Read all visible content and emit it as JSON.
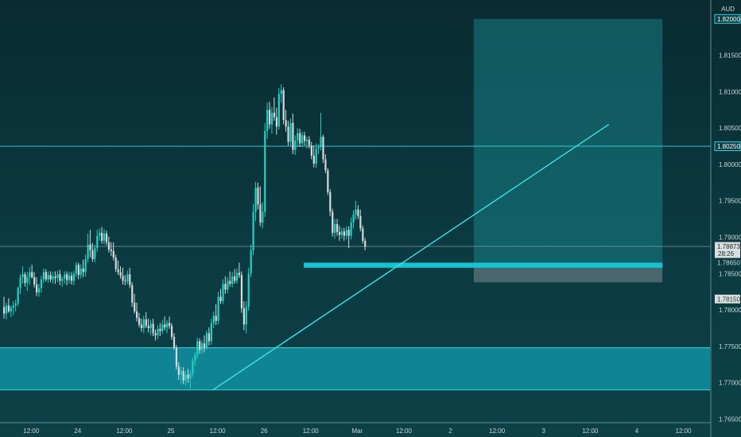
{
  "chart_data": {
    "type": "candlestick",
    "currency": "AUD",
    "ylim": [
      1.7645,
      1.8226
    ],
    "y_ticks": [
      "1.81500",
      "1.81000",
      "1.80500",
      "1.80000",
      "1.79500",
      "1.79000",
      "1.78500",
      "1.78000",
      "1.77500",
      "1.77000",
      "1.76500"
    ],
    "y_tick_values": [
      1.815,
      1.81,
      1.805,
      1.8,
      1.795,
      1.79,
      1.785,
      1.78,
      1.775,
      1.77,
      1.765
    ],
    "x_ticks": [
      "12:00",
      "24",
      "12:00",
      "25",
      "12:00",
      "26",
      "12:00",
      "Mar",
      "12:00",
      "2",
      "12:00",
      "3",
      "12:00",
      "4",
      "12:00"
    ],
    "x_tick_bars": [
      12,
      32,
      52,
      72,
      92,
      112,
      132,
      152,
      172,
      192,
      212,
      232,
      252,
      272,
      292
    ],
    "price_labels": [
      {
        "text": "1.82000",
        "value": 1.82,
        "style": "highlight"
      },
      {
        "text": "1.80250",
        "value": 1.8025,
        "style": "highlight"
      },
      {
        "text": "1.78650",
        "value": 1.7865,
        "style": "plain"
      },
      {
        "text": "1.78150",
        "value": 1.7815,
        "style": "grey"
      }
    ],
    "current_price": {
      "value": 1.78873,
      "text": "1.78873",
      "countdown": "28:26"
    },
    "horizontal_lines": [
      1.8025,
      1.78873
    ],
    "demand_zone": {
      "from": 1.769,
      "to": 1.7748
    },
    "support_band": {
      "from": 1.7858,
      "to": 1.7865,
      "bar_start": 129,
      "bar_end": 283
    },
    "trendline": {
      "bar_start": 90,
      "price_start": 1.769,
      "bar_end": 260,
      "price_end": 1.8055
    },
    "long_position": {
      "bar_start": 202,
      "bar_end": 283,
      "entry": 1.7865,
      "target": 1.82,
      "stop": 1.7838
    },
    "candles": [
      {
        "o": 1.7804,
        "h": 1.7818,
        "l": 1.7788,
        "c": 1.7795
      },
      {
        "o": 1.7795,
        "h": 1.781,
        "l": 1.7787,
        "c": 1.7806
      },
      {
        "o": 1.7806,
        "h": 1.7816,
        "l": 1.7796,
        "c": 1.7798
      },
      {
        "o": 1.7798,
        "h": 1.7806,
        "l": 1.779,
        "c": 1.7803
      },
      {
        "o": 1.7803,
        "h": 1.7812,
        "l": 1.7793,
        "c": 1.7806
      },
      {
        "o": 1.7806,
        "h": 1.7814,
        "l": 1.7798,
        "c": 1.7809
      },
      {
        "o": 1.7809,
        "h": 1.7832,
        "l": 1.7805,
        "c": 1.783
      },
      {
        "o": 1.783,
        "h": 1.7849,
        "l": 1.7822,
        "c": 1.7845
      },
      {
        "o": 1.7845,
        "h": 1.786,
        "l": 1.7836,
        "c": 1.7849
      },
      {
        "o": 1.7849,
        "h": 1.7852,
        "l": 1.7832,
        "c": 1.7837
      },
      {
        "o": 1.7837,
        "h": 1.7852,
        "l": 1.7826,
        "c": 1.7845
      },
      {
        "o": 1.7845,
        "h": 1.7859,
        "l": 1.7834,
        "c": 1.7852
      },
      {
        "o": 1.7852,
        "h": 1.7862,
        "l": 1.7843,
        "c": 1.7845
      },
      {
        "o": 1.7845,
        "h": 1.7852,
        "l": 1.7831,
        "c": 1.7835
      },
      {
        "o": 1.7835,
        "h": 1.7845,
        "l": 1.7819,
        "c": 1.7824
      },
      {
        "o": 1.7824,
        "h": 1.7836,
        "l": 1.7818,
        "c": 1.783
      },
      {
        "o": 1.783,
        "h": 1.7847,
        "l": 1.7824,
        "c": 1.7842
      },
      {
        "o": 1.7842,
        "h": 1.7857,
        "l": 1.7837,
        "c": 1.7852
      },
      {
        "o": 1.7852,
        "h": 1.7856,
        "l": 1.7839,
        "c": 1.7842
      },
      {
        "o": 1.7842,
        "h": 1.7853,
        "l": 1.7837,
        "c": 1.7848
      },
      {
        "o": 1.7848,
        "h": 1.7853,
        "l": 1.7838,
        "c": 1.7842
      },
      {
        "o": 1.7842,
        "h": 1.7852,
        "l": 1.7836,
        "c": 1.7846
      },
      {
        "o": 1.7846,
        "h": 1.7853,
        "l": 1.7836,
        "c": 1.7844
      },
      {
        "o": 1.7844,
        "h": 1.7854,
        "l": 1.7838,
        "c": 1.7849
      },
      {
        "o": 1.7849,
        "h": 1.7855,
        "l": 1.7834,
        "c": 1.784
      },
      {
        "o": 1.784,
        "h": 1.7846,
        "l": 1.7832,
        "c": 1.7843
      },
      {
        "o": 1.7843,
        "h": 1.7853,
        "l": 1.7836,
        "c": 1.7849
      },
      {
        "o": 1.7849,
        "h": 1.7853,
        "l": 1.7834,
        "c": 1.7841
      },
      {
        "o": 1.7841,
        "h": 1.7852,
        "l": 1.7836,
        "c": 1.7847
      },
      {
        "o": 1.7847,
        "h": 1.7852,
        "l": 1.7835,
        "c": 1.784
      },
      {
        "o": 1.784,
        "h": 1.7854,
        "l": 1.7834,
        "c": 1.785
      },
      {
        "o": 1.785,
        "h": 1.7866,
        "l": 1.7845,
        "c": 1.7862
      },
      {
        "o": 1.7862,
        "h": 1.7865,
        "l": 1.7842,
        "c": 1.7848
      },
      {
        "o": 1.7848,
        "h": 1.7863,
        "l": 1.7843,
        "c": 1.7857
      },
      {
        "o": 1.7857,
        "h": 1.7869,
        "l": 1.7845,
        "c": 1.7852
      },
      {
        "o": 1.7852,
        "h": 1.7876,
        "l": 1.7846,
        "c": 1.787
      },
      {
        "o": 1.787,
        "h": 1.7905,
        "l": 1.7865,
        "c": 1.789
      },
      {
        "o": 1.789,
        "h": 1.791,
        "l": 1.7872,
        "c": 1.7882
      },
      {
        "o": 1.7882,
        "h": 1.7892,
        "l": 1.7866,
        "c": 1.787
      },
      {
        "o": 1.787,
        "h": 1.789,
        "l": 1.7865,
        "c": 1.7885
      },
      {
        "o": 1.7885,
        "h": 1.791,
        "l": 1.788,
        "c": 1.7902
      },
      {
        "o": 1.7902,
        "h": 1.7912,
        "l": 1.7895,
        "c": 1.7906
      },
      {
        "o": 1.7906,
        "h": 1.7914,
        "l": 1.7891,
        "c": 1.7895
      },
      {
        "o": 1.7895,
        "h": 1.7911,
        "l": 1.789,
        "c": 1.7905
      },
      {
        "o": 1.7905,
        "h": 1.7909,
        "l": 1.7889,
        "c": 1.7893
      },
      {
        "o": 1.7893,
        "h": 1.7901,
        "l": 1.7879,
        "c": 1.7883
      },
      {
        "o": 1.7883,
        "h": 1.7893,
        "l": 1.7874,
        "c": 1.7881
      },
      {
        "o": 1.7881,
        "h": 1.7893,
        "l": 1.7868,
        "c": 1.7872
      },
      {
        "o": 1.7872,
        "h": 1.7876,
        "l": 1.7852,
        "c": 1.7856
      },
      {
        "o": 1.7856,
        "h": 1.7868,
        "l": 1.7848,
        "c": 1.7852
      },
      {
        "o": 1.7852,
        "h": 1.786,
        "l": 1.7843,
        "c": 1.7847
      },
      {
        "o": 1.7847,
        "h": 1.7858,
        "l": 1.7835,
        "c": 1.784
      },
      {
        "o": 1.784,
        "h": 1.7848,
        "l": 1.7834,
        "c": 1.7839
      },
      {
        "o": 1.7839,
        "h": 1.7854,
        "l": 1.7835,
        "c": 1.7849
      },
      {
        "o": 1.7849,
        "h": 1.7858,
        "l": 1.783,
        "c": 1.7834
      },
      {
        "o": 1.7834,
        "h": 1.7838,
        "l": 1.7804,
        "c": 1.781
      },
      {
        "o": 1.781,
        "h": 1.7822,
        "l": 1.7795,
        "c": 1.7798
      },
      {
        "o": 1.7798,
        "h": 1.781,
        "l": 1.7784,
        "c": 1.7789
      },
      {
        "o": 1.7789,
        "h": 1.7796,
        "l": 1.7776,
        "c": 1.778
      },
      {
        "o": 1.778,
        "h": 1.7788,
        "l": 1.777,
        "c": 1.7775
      },
      {
        "o": 1.7775,
        "h": 1.7792,
        "l": 1.7768,
        "c": 1.7787
      },
      {
        "o": 1.7787,
        "h": 1.7797,
        "l": 1.7775,
        "c": 1.7778
      },
      {
        "o": 1.7778,
        "h": 1.7788,
        "l": 1.7769,
        "c": 1.7775
      },
      {
        "o": 1.7775,
        "h": 1.7786,
        "l": 1.7765,
        "c": 1.7781
      },
      {
        "o": 1.7781,
        "h": 1.7788,
        "l": 1.7764,
        "c": 1.7768
      },
      {
        "o": 1.7768,
        "h": 1.7773,
        "l": 1.7758,
        "c": 1.7765
      },
      {
        "o": 1.7765,
        "h": 1.7779,
        "l": 1.776,
        "c": 1.7774
      },
      {
        "o": 1.7774,
        "h": 1.7782,
        "l": 1.7764,
        "c": 1.7771
      },
      {
        "o": 1.7771,
        "h": 1.7786,
        "l": 1.7767,
        "c": 1.778
      },
      {
        "o": 1.778,
        "h": 1.7791,
        "l": 1.7772,
        "c": 1.7776
      },
      {
        "o": 1.7776,
        "h": 1.7786,
        "l": 1.7768,
        "c": 1.7782
      },
      {
        "o": 1.7782,
        "h": 1.7791,
        "l": 1.7774,
        "c": 1.7778
      },
      {
        "o": 1.7778,
        "h": 1.7782,
        "l": 1.7759,
        "c": 1.7763
      },
      {
        "o": 1.7763,
        "h": 1.7768,
        "l": 1.7745,
        "c": 1.7748
      },
      {
        "o": 1.7748,
        "h": 1.7752,
        "l": 1.7718,
        "c": 1.7722
      },
      {
        "o": 1.7722,
        "h": 1.7728,
        "l": 1.7704,
        "c": 1.7711
      },
      {
        "o": 1.7711,
        "h": 1.7722,
        "l": 1.7698,
        "c": 1.7716
      },
      {
        "o": 1.7716,
        "h": 1.7721,
        "l": 1.7698,
        "c": 1.7703
      },
      {
        "o": 1.7703,
        "h": 1.7716,
        "l": 1.7696,
        "c": 1.7711
      },
      {
        "o": 1.7711,
        "h": 1.7719,
        "l": 1.77,
        "c": 1.7706
      },
      {
        "o": 1.7706,
        "h": 1.7717,
        "l": 1.7692,
        "c": 1.7713
      },
      {
        "o": 1.7713,
        "h": 1.7734,
        "l": 1.7708,
        "c": 1.773
      },
      {
        "o": 1.773,
        "h": 1.7742,
        "l": 1.7723,
        "c": 1.7738
      },
      {
        "o": 1.7738,
        "h": 1.7762,
        "l": 1.7733,
        "c": 1.7757
      },
      {
        "o": 1.7757,
        "h": 1.7761,
        "l": 1.774,
        "c": 1.7745
      },
      {
        "o": 1.7745,
        "h": 1.7758,
        "l": 1.774,
        "c": 1.7754
      },
      {
        "o": 1.7754,
        "h": 1.7765,
        "l": 1.7742,
        "c": 1.7748
      },
      {
        "o": 1.7748,
        "h": 1.7772,
        "l": 1.7745,
        "c": 1.7768
      },
      {
        "o": 1.7768,
        "h": 1.7776,
        "l": 1.7751,
        "c": 1.7757
      },
      {
        "o": 1.7757,
        "h": 1.7788,
        "l": 1.7752,
        "c": 1.7782
      },
      {
        "o": 1.7782,
        "h": 1.7798,
        "l": 1.7775,
        "c": 1.7792
      },
      {
        "o": 1.7792,
        "h": 1.7808,
        "l": 1.7779,
        "c": 1.7785
      },
      {
        "o": 1.7785,
        "h": 1.7825,
        "l": 1.778,
        "c": 1.7818
      },
      {
        "o": 1.7818,
        "h": 1.7829,
        "l": 1.7808,
        "c": 1.7812
      },
      {
        "o": 1.7812,
        "h": 1.7842,
        "l": 1.7808,
        "c": 1.7836
      },
      {
        "o": 1.7836,
        "h": 1.7846,
        "l": 1.7822,
        "c": 1.7828
      },
      {
        "o": 1.7828,
        "h": 1.7845,
        "l": 1.7823,
        "c": 1.784
      },
      {
        "o": 1.784,
        "h": 1.7853,
        "l": 1.7832,
        "c": 1.7836
      },
      {
        "o": 1.7836,
        "h": 1.7852,
        "l": 1.7831,
        "c": 1.7846
      },
      {
        "o": 1.7846,
        "h": 1.7856,
        "l": 1.7836,
        "c": 1.784
      },
      {
        "o": 1.784,
        "h": 1.7857,
        "l": 1.7836,
        "c": 1.7851
      },
      {
        "o": 1.7851,
        "h": 1.7865,
        "l": 1.7844,
        "c": 1.7848
      },
      {
        "o": 1.7848,
        "h": 1.7853,
        "l": 1.7796,
        "c": 1.7802
      },
      {
        "o": 1.7802,
        "h": 1.7812,
        "l": 1.7772,
        "c": 1.778
      },
      {
        "o": 1.778,
        "h": 1.7812,
        "l": 1.7768,
        "c": 1.7804
      },
      {
        "o": 1.7804,
        "h": 1.7858,
        "l": 1.7799,
        "c": 1.785
      },
      {
        "o": 1.785,
        "h": 1.789,
        "l": 1.7845,
        "c": 1.7882
      },
      {
        "o": 1.7882,
        "h": 1.7946,
        "l": 1.7875,
        "c": 1.7935
      },
      {
        "o": 1.7935,
        "h": 1.7976,
        "l": 1.7922,
        "c": 1.7968
      },
      {
        "o": 1.7968,
        "h": 1.7975,
        "l": 1.7938,
        "c": 1.7945
      },
      {
        "o": 1.7945,
        "h": 1.797,
        "l": 1.7915,
        "c": 1.792
      },
      {
        "o": 1.792,
        "h": 1.7948,
        "l": 1.7912,
        "c": 1.7935
      },
      {
        "o": 1.7935,
        "h": 1.8057,
        "l": 1.7928,
        "c": 1.8046
      },
      {
        "o": 1.8046,
        "h": 1.8085,
        "l": 1.8035,
        "c": 1.8075
      },
      {
        "o": 1.8075,
        "h": 1.8086,
        "l": 1.8049,
        "c": 1.8055
      },
      {
        "o": 1.8055,
        "h": 1.8079,
        "l": 1.8042,
        "c": 1.8071
      },
      {
        "o": 1.8071,
        "h": 1.8092,
        "l": 1.806,
        "c": 1.8065
      },
      {
        "o": 1.8065,
        "h": 1.8078,
        "l": 1.8041,
        "c": 1.8052
      },
      {
        "o": 1.8052,
        "h": 1.8105,
        "l": 1.8048,
        "c": 1.8097
      },
      {
        "o": 1.8097,
        "h": 1.811,
        "l": 1.8085,
        "c": 1.8102
      },
      {
        "o": 1.8102,
        "h": 1.8106,
        "l": 1.8055,
        "c": 1.8061
      },
      {
        "o": 1.8061,
        "h": 1.8075,
        "l": 1.8045,
        "c": 1.8052
      },
      {
        "o": 1.8052,
        "h": 1.806,
        "l": 1.8026,
        "c": 1.8031
      },
      {
        "o": 1.8031,
        "h": 1.8063,
        "l": 1.8025,
        "c": 1.8057
      },
      {
        "o": 1.8057,
        "h": 1.807,
        "l": 1.8014,
        "c": 1.802
      },
      {
        "o": 1.802,
        "h": 1.804,
        "l": 1.8013,
        "c": 1.8033
      },
      {
        "o": 1.8033,
        "h": 1.805,
        "l": 1.8024,
        "c": 1.8043
      },
      {
        "o": 1.8043,
        "h": 1.8049,
        "l": 1.8024,
        "c": 1.8029
      },
      {
        "o": 1.8029,
        "h": 1.8045,
        "l": 1.8024,
        "c": 1.804
      },
      {
        "o": 1.804,
        "h": 1.8045,
        "l": 1.8026,
        "c": 1.8032
      },
      {
        "o": 1.8032,
        "h": 1.8038,
        "l": 1.8022,
        "c": 1.8034
      },
      {
        "o": 1.8034,
        "h": 1.8039,
        "l": 1.8022,
        "c": 1.8026
      },
      {
        "o": 1.8026,
        "h": 1.8031,
        "l": 1.8007,
        "c": 1.8012
      },
      {
        "o": 1.8012,
        "h": 1.8026,
        "l": 1.7996,
        "c": 1.8001
      },
      {
        "o": 1.8001,
        "h": 1.8029,
        "l": 1.7995,
        "c": 1.8022
      },
      {
        "o": 1.8022,
        "h": 1.8028,
        "l": 1.8014,
        "c": 1.8024
      },
      {
        "o": 1.8024,
        "h": 1.8071,
        "l": 1.8019,
        "c": 1.8038
      },
      {
        "o": 1.8038,
        "h": 1.8041,
        "l": 1.8002,
        "c": 1.8007
      },
      {
        "o": 1.8007,
        "h": 1.8014,
        "l": 1.7988,
        "c": 1.7992
      },
      {
        "o": 1.7992,
        "h": 1.7995,
        "l": 1.7958,
        "c": 1.7962
      },
      {
        "o": 1.7962,
        "h": 1.7966,
        "l": 1.7929,
        "c": 1.7935
      },
      {
        "o": 1.7935,
        "h": 1.7939,
        "l": 1.7901,
        "c": 1.7906
      },
      {
        "o": 1.7906,
        "h": 1.7925,
        "l": 1.7898,
        "c": 1.7918
      },
      {
        "o": 1.7918,
        "h": 1.7925,
        "l": 1.7902,
        "c": 1.7907
      },
      {
        "o": 1.7907,
        "h": 1.7916,
        "l": 1.7895,
        "c": 1.7903
      },
      {
        "o": 1.7903,
        "h": 1.7913,
        "l": 1.7898,
        "c": 1.7908
      },
      {
        "o": 1.7908,
        "h": 1.7913,
        "l": 1.7895,
        "c": 1.7902
      },
      {
        "o": 1.7902,
        "h": 1.7915,
        "l": 1.7897,
        "c": 1.791
      },
      {
        "o": 1.791,
        "h": 1.7915,
        "l": 1.7885,
        "c": 1.7902
      },
      {
        "o": 1.7902,
        "h": 1.7927,
        "l": 1.7897,
        "c": 1.792
      },
      {
        "o": 1.792,
        "h": 1.7937,
        "l": 1.7912,
        "c": 1.7931
      },
      {
        "o": 1.7931,
        "h": 1.795,
        "l": 1.7924,
        "c": 1.7938
      },
      {
        "o": 1.7938,
        "h": 1.7944,
        "l": 1.7925,
        "c": 1.7929
      },
      {
        "o": 1.7929,
        "h": 1.7938,
        "l": 1.7908,
        "c": 1.7912
      },
      {
        "o": 1.7912,
        "h": 1.7916,
        "l": 1.7891,
        "c": 1.7895
      },
      {
        "o": 1.7895,
        "h": 1.7899,
        "l": 1.7882,
        "c": 1.7887
      }
    ]
  }
}
